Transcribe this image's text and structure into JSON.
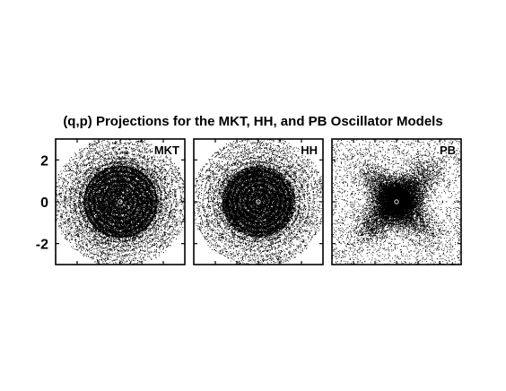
{
  "title": "(q,p) Projections for the MKT, HH, and PB Oscillator Models",
  "chart_data": {
    "type": "scatter",
    "title": "(q,p) Projections for the MKT, HH, and PB Oscillator Models",
    "xlabel": "",
    "ylabel": "",
    "xlim": [
      -3,
      3
    ],
    "ylim": [
      -3,
      3
    ],
    "y_ticks": [
      2,
      0,
      -2
    ],
    "y_tick_labels": [
      "2",
      "0",
      "-2"
    ],
    "x_ticks": [
      -2,
      -1,
      0,
      1,
      2
    ],
    "grid": false,
    "panels": [
      {
        "name": "MKT",
        "distribution": "circular-dense",
        "core_radius": 1.7,
        "outer_radius": 2.9,
        "color": "#000000"
      },
      {
        "name": "HH",
        "distribution": "circular-dense",
        "core_radius": 1.6,
        "outer_radius": 2.9,
        "color": "#000000"
      },
      {
        "name": "PB",
        "distribution": "cross-diagonal",
        "core_radius": 0.8,
        "outer_radius": 2.9,
        "color": "#000000"
      }
    ]
  }
}
